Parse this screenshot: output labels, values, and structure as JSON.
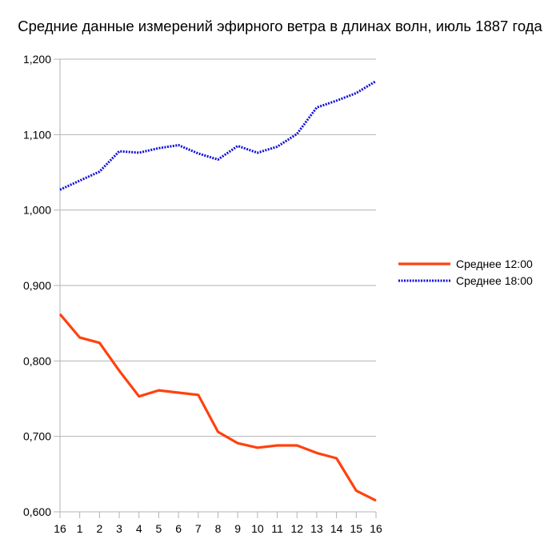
{
  "chart_data": {
    "type": "line",
    "title": "Средние данные измерений эфирного ветра в длинах волн, июль 1887 года",
    "x": [
      "16",
      "1",
      "2",
      "3",
      "4",
      "5",
      "6",
      "7",
      "8",
      "9",
      "10",
      "11",
      "12",
      "13",
      "14",
      "15",
      "16"
    ],
    "ylim": [
      0.6,
      1.2
    ],
    "yticks": [
      "0,600",
      "0,700",
      "0,800",
      "0,900",
      "1,000",
      "1,100",
      "1,200"
    ],
    "grid": "horizontal",
    "legend_position": "right",
    "series": [
      {
        "name": "Среднее 12:00",
        "color": "#ff420e",
        "style": "solid",
        "values": [
          0.862,
          0.831,
          0.824,
          0.787,
          0.753,
          0.761,
          0.758,
          0.755,
          0.706,
          0.691,
          0.685,
          0.688,
          0.688,
          0.678,
          0.671,
          0.628,
          0.615
        ]
      },
      {
        "name": "Среднее 18:00",
        "color": "#1010d8",
        "style": "dotted",
        "values": [
          1.027,
          1.039,
          1.051,
          1.078,
          1.076,
          1.082,
          1.086,
          1.075,
          1.067,
          1.085,
          1.076,
          1.084,
          1.101,
          1.136,
          1.145,
          1.155,
          1.171
        ]
      }
    ]
  }
}
